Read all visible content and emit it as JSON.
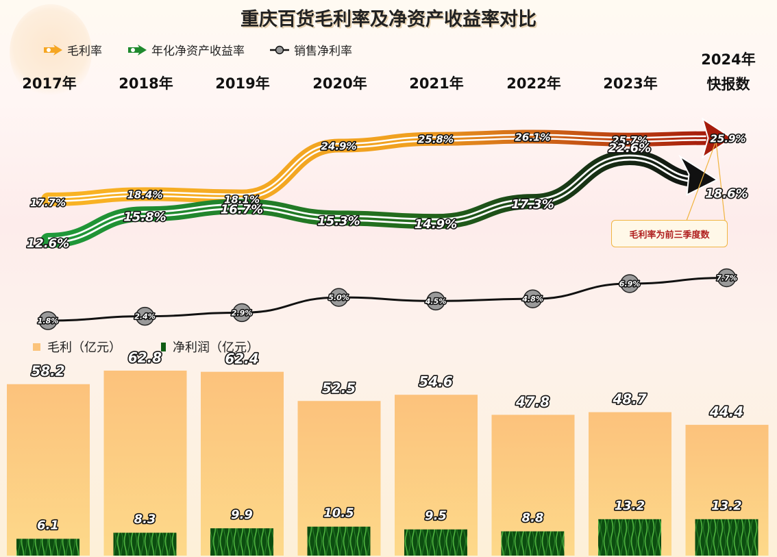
{
  "title": "重庆百货毛利率及净资产收益率对比",
  "legend_top": [
    "毛利率",
    "年化净资产收益率",
    "销售净利率"
  ],
  "legend_bottom": [
    "毛利（亿元）",
    "净利润（亿元）"
  ],
  "years": [
    {
      "line1": "2017年",
      "line2": ""
    },
    {
      "line1": "2018年",
      "line2": ""
    },
    {
      "line1": "2019年",
      "line2": ""
    },
    {
      "line1": "2020年",
      "line2": ""
    },
    {
      "line1": "2021年",
      "line2": ""
    },
    {
      "line1": "2022年",
      "line2": ""
    },
    {
      "line1": "2023年",
      "line2": ""
    },
    {
      "line1": "2024年",
      "line2": "快报数"
    }
  ],
  "note": "毛利率为前三季度数",
  "colors": {
    "gross_margin": "#f5a623",
    "gross_margin_end": "#a61c0c",
    "roe": "#1f8a2e",
    "roe_end": "#111111",
    "net_margin": "#111111",
    "gross_profit_bar": "#fbc37a",
    "net_profit_bar": "#0f5d14"
  },
  "chart_data": {
    "type": "line+bar",
    "categories": [
      "2017年",
      "2018年",
      "2019年",
      "2020年",
      "2021年",
      "2022年",
      "2023年",
      "2024年快报数"
    ],
    "series": [
      {
        "name": "毛利率",
        "kind": "line",
        "values": [
          17.7,
          18.4,
          18.1,
          24.9,
          25.8,
          26.1,
          25.7,
          25.9
        ],
        "labels": [
          "17.7%",
          "18.4%",
          "18.1%",
          "24.9%",
          "25.8%",
          "26.1%",
          "25.7%",
          "25.9%"
        ]
      },
      {
        "name": "年化净资产收益率",
        "kind": "line",
        "values": [
          12.6,
          15.8,
          16.7,
          15.3,
          14.9,
          17.3,
          22.6,
          18.6
        ],
        "labels": [
          "12.6%",
          "15.8%",
          "16.7%",
          "15.3%",
          "14.9%",
          "17.3%",
          "22.6%",
          "18.6%"
        ]
      },
      {
        "name": "销售净利率",
        "kind": "line",
        "values": [
          1.8,
          2.4,
          2.9,
          5.0,
          4.5,
          4.8,
          6.9,
          7.7
        ],
        "labels": [
          "1.8%",
          "2.4%",
          "2.9%",
          "5.0%",
          "4.5%",
          "4.8%",
          "6.9%",
          "7.7%"
        ]
      },
      {
        "name": "毛利（亿元）",
        "kind": "bar",
        "values": [
          58.2,
          62.8,
          62.4,
          52.5,
          54.6,
          47.8,
          48.7,
          44.4
        ],
        "labels": [
          "58.2",
          "62.8",
          "62.4",
          "52.5",
          "54.6",
          "47.8",
          "48.7",
          "44.4"
        ]
      },
      {
        "name": "净利润（亿元）",
        "kind": "bar",
        "values": [
          6.1,
          8.3,
          9.9,
          10.5,
          9.5,
          8.8,
          13.2,
          13.2
        ],
        "labels": [
          "6.1",
          "8.3",
          "9.9",
          "10.5",
          "9.5",
          "8.8",
          "13.2",
          "13.2"
        ]
      }
    ],
    "grid": false
  }
}
